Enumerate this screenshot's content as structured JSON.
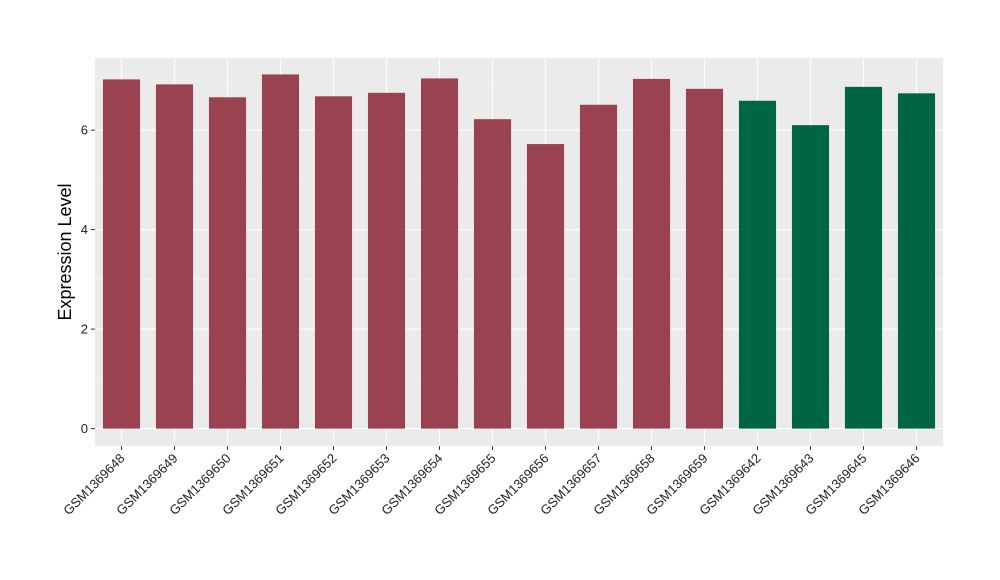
{
  "chart_data": {
    "type": "bar",
    "title": "",
    "xlabel": "",
    "ylabel": "Expression Level",
    "ylim": [
      -0.35,
      7.45
    ],
    "yticks": [
      0,
      2,
      4,
      6
    ],
    "grid": true,
    "legend": "none",
    "categories": [
      "GSM1369648",
      "GSM1369649",
      "GSM1369650",
      "GSM1369651",
      "GSM1369652",
      "GSM1369653",
      "GSM1369654",
      "GSM1369655",
      "GSM1369656",
      "GSM1369657",
      "GSM1369658",
      "GSM1369659",
      "GSM1369642",
      "GSM1369643",
      "GSM1369645",
      "GSM1369646"
    ],
    "values": [
      7.02,
      6.92,
      6.66,
      7.12,
      6.68,
      6.75,
      7.04,
      6.22,
      5.72,
      6.51,
      7.03,
      6.83,
      6.59,
      6.1,
      6.87,
      6.74
    ],
    "groups": [
      "a",
      "a",
      "a",
      "a",
      "a",
      "a",
      "a",
      "a",
      "a",
      "a",
      "a",
      "a",
      "b",
      "b",
      "b",
      "b"
    ],
    "colors": {
      "a": "#9a4250",
      "b": "#006543",
      "panel": "#ebebeb",
      "grid_major": "#ffffff",
      "grid_minor": "#f5f5f5"
    }
  }
}
